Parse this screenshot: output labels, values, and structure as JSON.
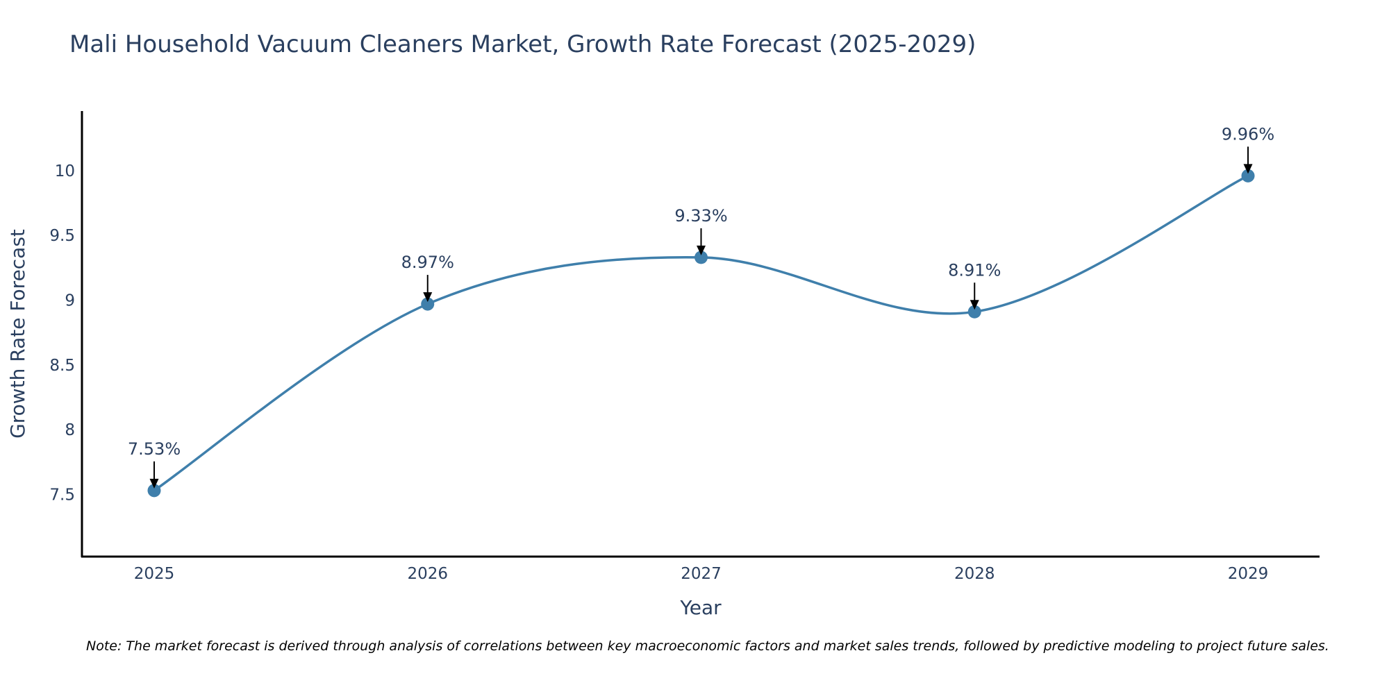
{
  "chart_data": {
    "type": "line",
    "title": "Mali Household Vacuum Cleaners Market, Growth Rate Forecast (2025-2029)",
    "xlabel": "Year",
    "ylabel": "Growth Rate Forecast",
    "categories": [
      "2025",
      "2026",
      "2027",
      "2028",
      "2029"
    ],
    "series": [
      {
        "name": "Growth Rate Forecast",
        "values": [
          7.53,
          8.97,
          9.33,
          8.91,
          9.96
        ]
      }
    ],
    "data_labels": [
      "7.53%",
      "8.97%",
      "9.33%",
      "8.91%",
      "9.96%"
    ],
    "y_ticks": [
      7.5,
      8,
      8.5,
      9,
      9.5,
      10
    ],
    "y_tick_labels": [
      "7.5",
      "8",
      "8.5",
      "9",
      "9.5",
      "10"
    ],
    "ylim": [
      7.02,
      10.46
    ],
    "grid": false,
    "line_color": "#3f7fab",
    "marker_color": "#3f7fab",
    "annotation_arrow_color": "#000000"
  },
  "note": "Note: The market forecast is derived through analysis of correlations between key macroeconomic factors and market sales trends, followed by predictive modeling to project future sales."
}
